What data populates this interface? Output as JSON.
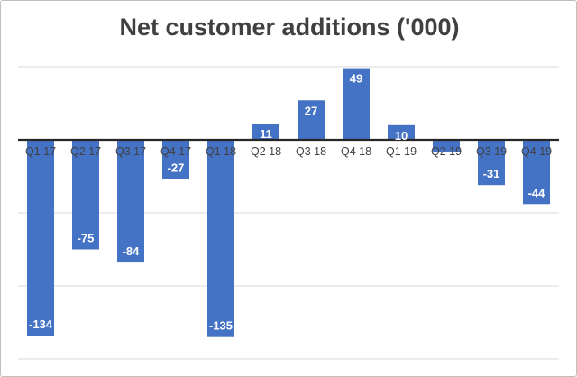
{
  "chart_data": {
    "type": "bar",
    "title": "Net customer additions ('000)",
    "categories": [
      "Q1 17",
      "Q2 17",
      "Q3 17",
      "Q4 17",
      "Q1 18",
      "Q2 18",
      "Q3 18",
      "Q4 18",
      "Q1 19",
      "Q2 19",
      "Q3 19",
      "Q4 19"
    ],
    "values": [
      -134,
      -75,
      -84,
      -27,
      -135,
      11,
      27,
      49,
      10,
      -8,
      -31,
      -44
    ],
    "data_labels": [
      "-134",
      "-75",
      "-84",
      "-27",
      "-135",
      "11",
      "27",
      "49",
      "10",
      "",
      "-31",
      "-44"
    ],
    "ylim": [
      -150,
      50
    ],
    "gridlines": true,
    "legend": "none",
    "bar_color": "#4472c4",
    "axis_color": "#262626"
  }
}
